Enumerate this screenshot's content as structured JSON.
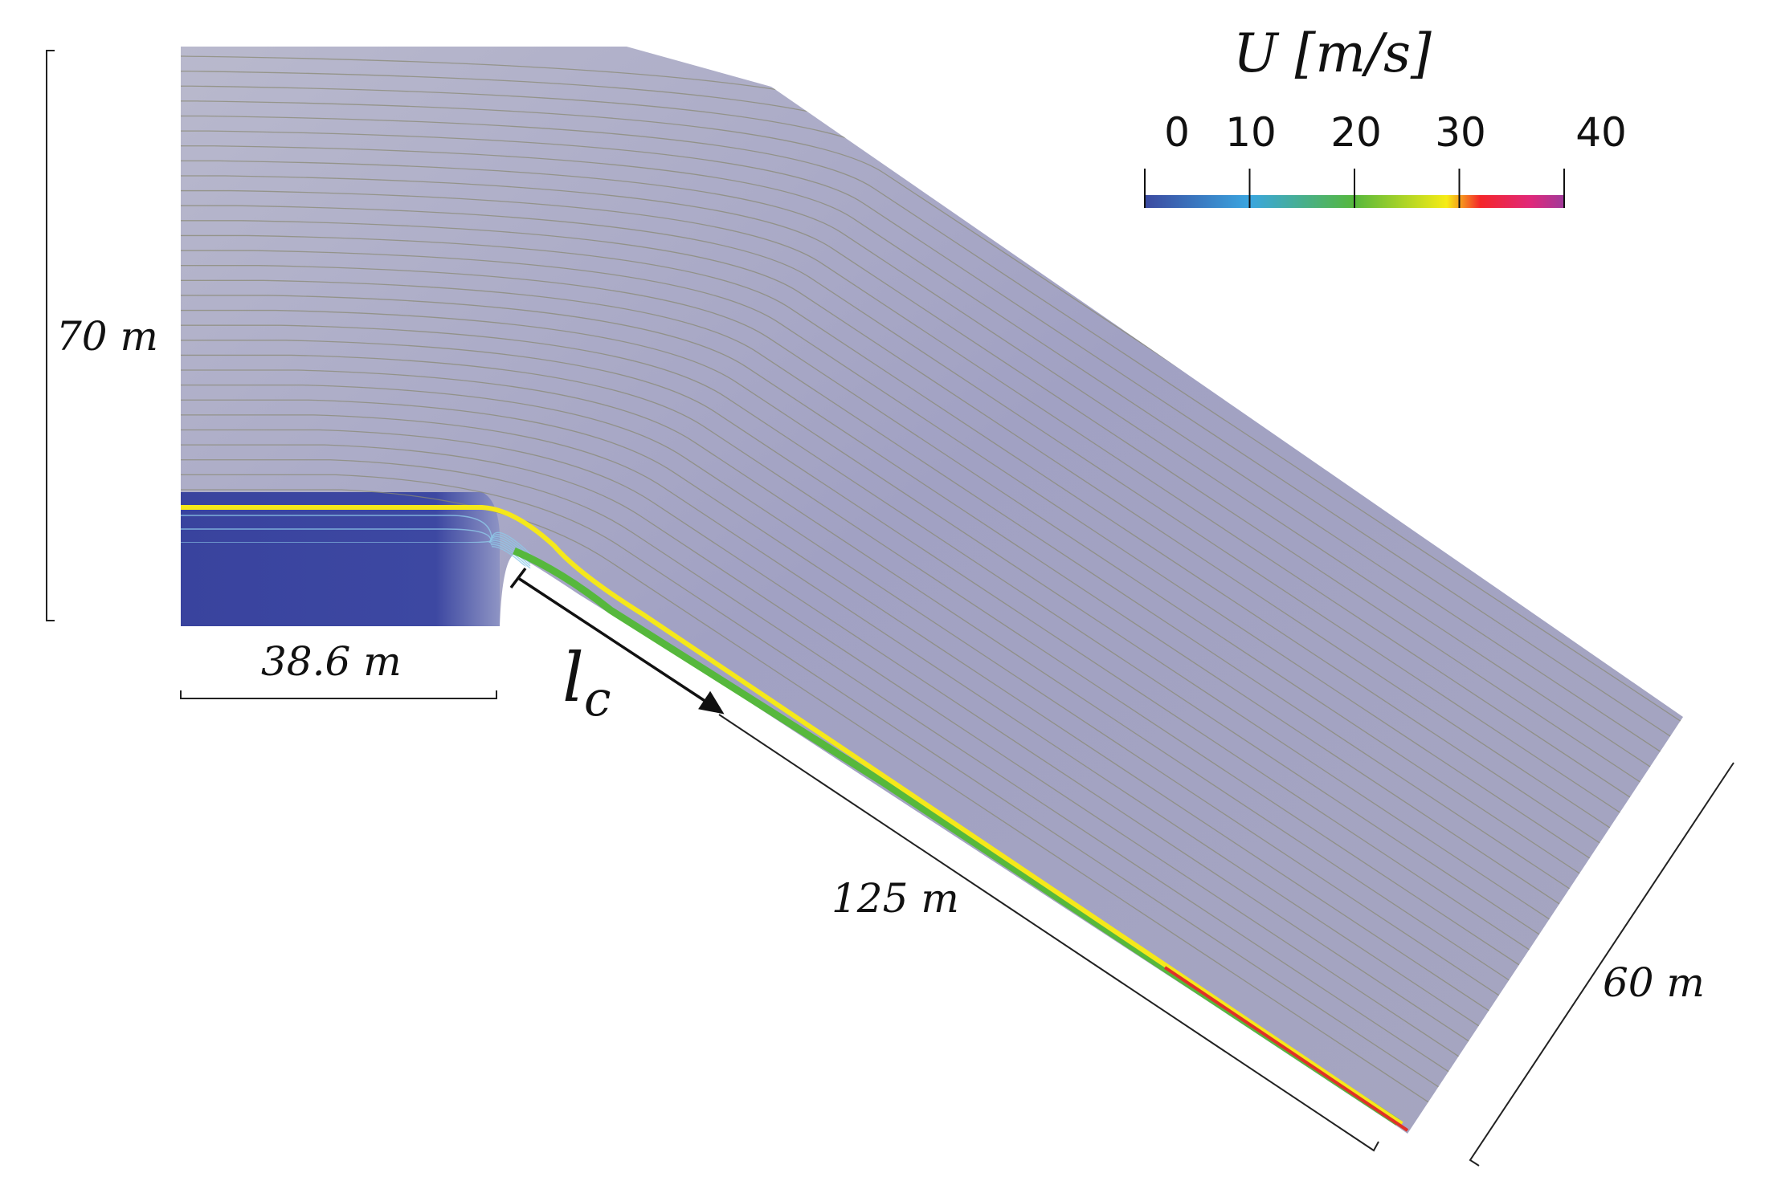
{
  "figure": {
    "colorbar": {
      "title": "U [m/s]",
      "ticks": [
        "0",
        "10",
        "20",
        "30",
        "40"
      ],
      "tick_values": [
        0,
        10,
        20,
        30,
        40
      ],
      "range": [
        0,
        40
      ],
      "colormap": [
        "#3b4aa0",
        "#3aa6e0",
        "#56b83c",
        "#f7ec15",
        "#f4262a",
        "#e0287a",
        "#a03a9a"
      ]
    },
    "dimensions": {
      "height_left": "70 m",
      "width_bottom": "38.6 m",
      "slope_length": "125 m",
      "outlet_width": "60 m"
    },
    "annotation": {
      "symbol": "l",
      "subscript": "c"
    },
    "colors": {
      "field": "#a4a4c2",
      "field_top": "#b6b6cc",
      "inlet": "#3a45a0",
      "jet": "#f5e81a",
      "streamline": "#8a8a74"
    }
  }
}
